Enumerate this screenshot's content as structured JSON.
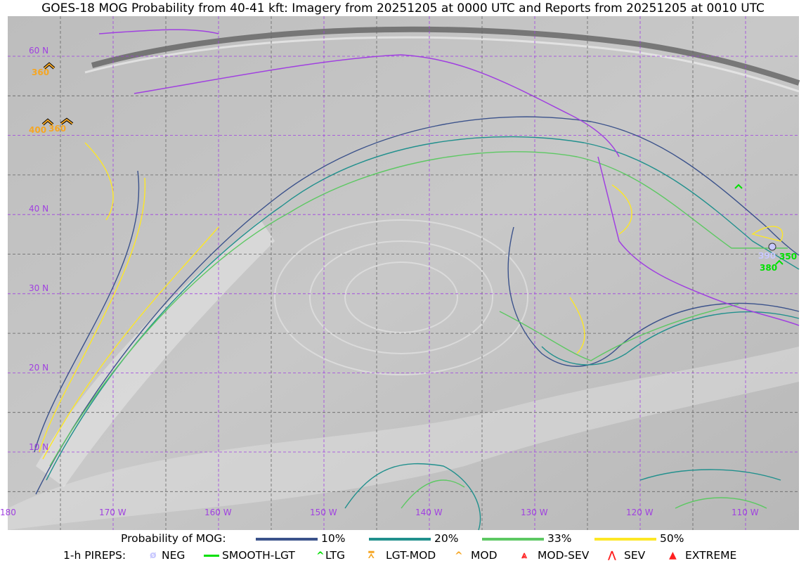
{
  "title": "GOES-18 MOG Probability from 40-41 kft: Imagery from 20251205 at 0000 UTC and Reports from 20251205 at 0010 UTC",
  "map": {
    "lon_labels": [
      "180",
      "170 W",
      "160 W",
      "150 W",
      "140 W",
      "130 W",
      "120 W",
      "110 W"
    ],
    "lat_labels": [
      "60 N",
      "40 N",
      "30 N",
      "20 N",
      "10 N"
    ],
    "grid_color": "#a040e0",
    "pireps": [
      {
        "label": "360",
        "type": "MOD",
        "color": "#f5a623"
      },
      {
        "label": "400",
        "type": "MOD",
        "color": "#f5a623"
      },
      {
        "label": "360",
        "type": "MOD",
        "color": "#f5a623"
      },
      {
        "label": "390",
        "type": "NEG",
        "color": "#c8c8ff"
      },
      {
        "label": "350",
        "type": "LTG",
        "color": "#00e000"
      },
      {
        "label": "380",
        "type": "LTG",
        "color": "#00e000"
      }
    ]
  },
  "legend": {
    "mog_label": "Probability of MOG:",
    "mog_levels": [
      {
        "label": "10%",
        "color": "#3b528b"
      },
      {
        "label": "20%",
        "color": "#21908d"
      },
      {
        "label": "33%",
        "color": "#5dc863"
      },
      {
        "label": "50%",
        "color": "#fde725"
      }
    ],
    "pirep_label": "1-h PIREPS:",
    "pirep_types": [
      {
        "label": "NEG",
        "icon": "neg-slashed-circle-icon",
        "color": "#c8c8ff"
      },
      {
        "label": "SMOOTH-LGT",
        "icon": "smooth-line-icon",
        "color": "#00e000"
      },
      {
        "label": "LTG",
        "icon": "caret-icon",
        "color": "#00e000"
      },
      {
        "label": "LGT-MOD",
        "icon": "lgt-mod-icon",
        "color": "#f5a623"
      },
      {
        "label": "MOD",
        "icon": "caret-icon",
        "color": "#f5a623"
      },
      {
        "label": "MOD-SEV",
        "icon": "mod-sev-icon",
        "color": "#ff2020"
      },
      {
        "label": "SEV",
        "icon": "double-caret-icon",
        "color": "#ff2020"
      },
      {
        "label": "EXTREME",
        "icon": "filled-triangle-icon",
        "color": "#ff2020"
      }
    ]
  }
}
